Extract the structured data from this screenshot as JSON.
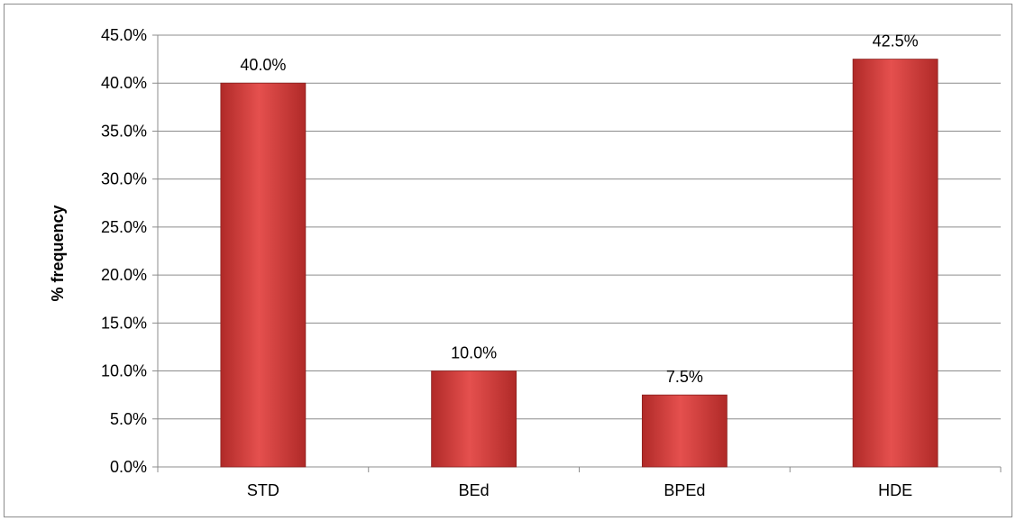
{
  "chart_data": {
    "type": "bar",
    "title": "",
    "xlabel": "",
    "ylabel": "% frequency",
    "categories": [
      "STD",
      "BEd",
      "BPEd",
      "HDE"
    ],
    "values": [
      40.0,
      10.0,
      7.5,
      42.5
    ],
    "data_labels": [
      "40.0%",
      "10.0%",
      "7.5%",
      "42.5%"
    ],
    "ylim": [
      0,
      45
    ],
    "yticks": [
      0,
      5,
      10,
      15,
      20,
      25,
      30,
      35,
      40,
      45
    ],
    "ytick_labels": [
      "0.0%",
      "5.0%",
      "10.0%",
      "15.0%",
      "20.0%",
      "25.0%",
      "30.0%",
      "35.0%",
      "40.0%",
      "45.0%"
    ],
    "grid": true,
    "legend": "none",
    "colors": {
      "bar_light": "#e5504e",
      "bar_dark": "#b02a28",
      "grid": "#8c8c8c"
    }
  }
}
